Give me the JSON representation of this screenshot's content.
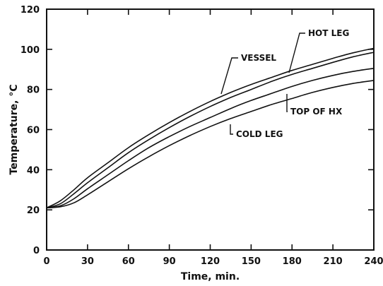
{
  "chart_data": {
    "type": "line",
    "title": "",
    "xlabel": "Time, min.",
    "ylabel": "Temperature, °C",
    "xlim": [
      0,
      240
    ],
    "ylim": [
      0,
      120
    ],
    "x_ticks": [
      0,
      30,
      60,
      90,
      120,
      150,
      180,
      210,
      240
    ],
    "y_ticks": [
      0,
      20,
      40,
      60,
      80,
      100,
      120
    ],
    "grid": false,
    "series": [
      {
        "name": "VESSEL",
        "x": [
          0,
          10,
          20,
          30,
          45,
          60,
          75,
          90,
          105,
          120,
          135,
          150,
          165,
          180,
          195,
          210,
          225,
          240
        ],
        "y": [
          21,
          24.5,
          30,
          36,
          43.5,
          51,
          57.5,
          63.5,
          69,
          74,
          78.5,
          82.5,
          86,
          89.5,
          92.5,
          95.5,
          98.3,
          100.5
        ]
      },
      {
        "name": "HOT LEG",
        "x": [
          0,
          10,
          20,
          30,
          45,
          60,
          75,
          90,
          105,
          120,
          135,
          150,
          165,
          180,
          195,
          210,
          225,
          240
        ],
        "y": [
          21,
          23,
          28,
          33.5,
          41,
          48.5,
          55,
          61,
          66.5,
          71.5,
          76,
          80,
          84,
          87.5,
          90.5,
          93.5,
          96.3,
          98.5
        ]
      },
      {
        "name": "TOP OF HX",
        "x": [
          0,
          10,
          20,
          30,
          45,
          60,
          75,
          90,
          105,
          120,
          135,
          150,
          165,
          180,
          195,
          210,
          225,
          240
        ],
        "y": [
          21,
          22,
          25.5,
          30.5,
          37.5,
          44.5,
          51,
          56.5,
          61.5,
          66,
          70.5,
          74.5,
          78,
          81.5,
          84.5,
          87,
          89,
          90.5
        ]
      },
      {
        "name": "COLD LEG",
        "x": [
          0,
          10,
          20,
          30,
          45,
          60,
          75,
          90,
          105,
          120,
          135,
          150,
          165,
          180,
          195,
          210,
          225,
          240
        ],
        "y": [
          21,
          21.5,
          23.5,
          27.5,
          34,
          40.5,
          46.5,
          52,
          57,
          61.5,
          65.5,
          69,
          72.5,
          75.5,
          78.5,
          81,
          83,
          84.5
        ]
      }
    ],
    "annotations": [
      "VESSEL",
      "HOT LEG",
      "TOP OF HX",
      "COLD LEG"
    ]
  }
}
